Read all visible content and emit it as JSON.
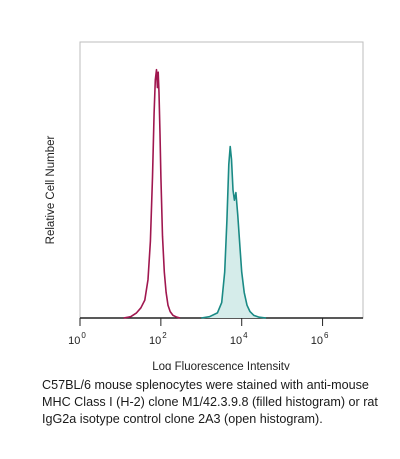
{
  "chart_data": {
    "type": "area",
    "title": "",
    "xlabel": "Log Fluorescence Intensity",
    "ylabel": "Relative Cell Number",
    "x_scale": "log",
    "xlim": [
      1,
      10000000
    ],
    "ylim": [
      0,
      100
    ],
    "grid": false,
    "legend": "none",
    "x_ticks": [
      {
        "value": 1,
        "base": "10",
        "exp": "0"
      },
      {
        "value": 100,
        "base": "10",
        "exp": "2"
      },
      {
        "value": 10000,
        "base": "10",
        "exp": "4"
      },
      {
        "value": 1000000,
        "base": "10",
        "exp": "6"
      }
    ],
    "series": [
      {
        "style": "open",
        "color": "#A0174F",
        "x": [
          12,
          18,
          25,
          32,
          40,
          48,
          55,
          62,
          68,
          73,
          78,
          82,
          86,
          90,
          95,
          100,
          110,
          122,
          135,
          150,
          170,
          200,
          250,
          300
        ],
        "y": [
          0,
          0.5,
          2,
          4,
          7,
          15,
          30,
          55,
          80,
          93,
          97,
          90,
          96,
          88,
          72,
          55,
          32,
          18,
          10,
          5,
          2.5,
          1,
          0.3,
          0
        ]
      },
      {
        "style": "filled",
        "color": "#1A8A85",
        "fill": "#D5ECEA",
        "x": [
          1000,
          1600,
          2500,
          3200,
          3800,
          4300,
          4800,
          5200,
          5600,
          6100,
          6600,
          7200,
          8000,
          9000,
          10000,
          11500,
          13500,
          16000,
          20000,
          27000,
          40000
        ],
        "y": [
          0,
          0.5,
          2,
          6,
          18,
          38,
          60,
          67,
          62,
          50,
          46,
          49,
          40,
          28,
          18,
          10,
          5,
          2.5,
          1,
          0.3,
          0
        ]
      }
    ]
  },
  "caption": "C57BL/6 mouse splenocytes were stained with anti-mouse MHC Class I (H-2) clone M1/42.3.9.8 (filled histogram) or rat IgG2a isotype control clone 2A3 (open histogram)."
}
